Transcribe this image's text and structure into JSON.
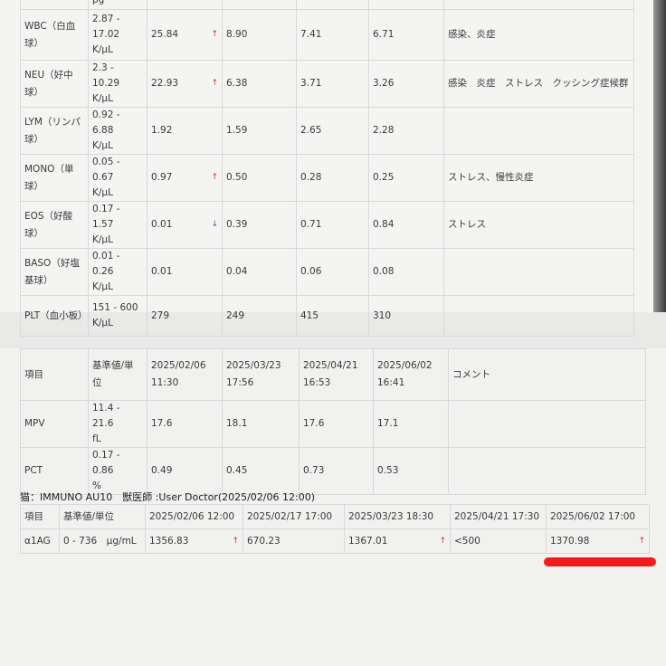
{
  "cbc_table": {
    "partial_top_unit": "pg",
    "rows": [
      {
        "item": "WBC（白血球）",
        "ref": "2.87 - 17.02",
        "unit": "K/μL",
        "values": [
          "25.84",
          "8.90",
          "7.41",
          "6.71"
        ],
        "flags": [
          "up",
          "",
          "",
          ""
        ],
        "comment": "感染、炎症"
      },
      {
        "item": "NEU（好中球）",
        "ref": "2.3 - 10.29",
        "unit": "K/μL",
        "values": [
          "22.93",
          "6.38",
          "3.71",
          "3.26"
        ],
        "flags": [
          "up",
          "",
          "",
          ""
        ],
        "comment": "感染　炎症　ストレス　クッシング症候群"
      },
      {
        "item": "LYM（リンパ球）",
        "ref": "0.92 - 6.88",
        "unit": "K/μL",
        "values": [
          "1.92",
          "1.59",
          "2.65",
          "2.28"
        ],
        "flags": [
          "",
          "",
          "",
          ""
        ],
        "comment": ""
      },
      {
        "item": "MONO（単球）",
        "ref": "0.05 - 0.67",
        "unit": "K/μL",
        "values": [
          "0.97",
          "0.50",
          "0.28",
          "0.25"
        ],
        "flags": [
          "up",
          "",
          "",
          ""
        ],
        "comment": "ストレス、慢性炎症"
      },
      {
        "item": "EOS（好酸球）",
        "ref": "0.17 - 1.57",
        "unit": "K/μL",
        "values": [
          "0.01",
          "0.39",
          "0.71",
          "0.84"
        ],
        "flags": [
          "down",
          "",
          "",
          ""
        ],
        "comment": "ストレス"
      },
      {
        "item": "BASO（好塩基球）",
        "ref": "0.01 - 0.26",
        "unit": "K/μL",
        "values": [
          "0.01",
          "0.04",
          "0.06",
          "0.08"
        ],
        "flags": [
          "",
          "",
          "",
          ""
        ],
        "comment": ""
      },
      {
        "item": "PLT（血小板）",
        "ref": "151 - 600",
        "unit": "K/μL",
        "values": [
          "279",
          "249",
          "415",
          "310"
        ],
        "flags": [
          "",
          "",
          "",
          ""
        ],
        "comment": ""
      }
    ]
  },
  "platelet_table": {
    "headers": [
      "項目",
      "基準値/単位",
      "2025/02/06 11:30",
      "2025/03/23 17:56",
      "2025/04/21 16:53",
      "2025/06/02 16:41",
      "コメント"
    ],
    "rows": [
      {
        "item": "MPV",
        "ref": "11.4 - 21.6",
        "unit": "fL",
        "values": [
          "17.6",
          "18.1",
          "17.6",
          "17.1"
        ],
        "comment": ""
      },
      {
        "item": "PCT",
        "ref": "0.17 - 0.86",
        "unit": "%",
        "values": [
          "0.49",
          "0.45",
          "0.73",
          "0.53"
        ],
        "comment": ""
      }
    ]
  },
  "immuno": {
    "caption": "猫：IMMUNO AU10　獣医師 :User Doctor(2025/02/06 12:00)",
    "headers": [
      "項目",
      "基準値/単位",
      "2025/02/06 12:00",
      "2025/02/17 17:00",
      "2025/03/23 18:30",
      "2025/04/21 17:30",
      "2025/06/02 17:00"
    ],
    "row": {
      "item": "α1AG",
      "ref": "0 - 736　μg/mL",
      "values": [
        "1356.83",
        "670.23",
        "1367.01",
        "<500",
        "1370.98"
      ],
      "flags": [
        "up",
        "",
        "up",
        "",
        "up"
      ]
    }
  },
  "arrow_glyphs": {
    "up": "↑",
    "down": "↓"
  },
  "colors": {
    "flag_high": "#c0392b",
    "flag_low": "#2e6db4",
    "marker": "#f01c1c"
  }
}
